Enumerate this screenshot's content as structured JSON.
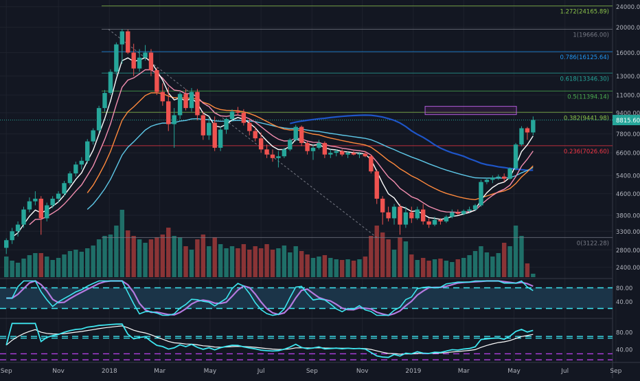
{
  "chart_data": {
    "type": "candlestick",
    "scale": "log",
    "ylim": [
      2200,
      24000
    ],
    "y_ticks": [
      24000,
      20000,
      16000,
      13000,
      11000,
      9400,
      7800,
      6600,
      5400,
      4600,
      3800,
      3300,
      2800,
      2400
    ],
    "y_tick_labels": [
      "24000.00",
      "20000.00",
      "16000.00",
      "13000.00",
      "11000.00",
      "9400.00",
      "7800.00",
      "6600.00",
      "5400.00",
      "4600.00",
      "3800.00",
      "3300.00",
      "2800.00",
      "2400.00"
    ],
    "x_labels": [
      {
        "label": "Sep",
        "t": 0.5
      },
      {
        "label": "Nov",
        "t": 9.5
      },
      {
        "label": "2018",
        "t": 18.3
      },
      {
        "label": "Mar",
        "t": 27
      },
      {
        "label": "May",
        "t": 35.7
      },
      {
        "label": "Jul",
        "t": 44.5
      },
      {
        "label": "Sep",
        "t": 53.3
      },
      {
        "label": "Nov",
        "t": 62
      },
      {
        "label": "2019",
        "t": 70.8
      },
      {
        "label": "Mar",
        "t": 79.5
      },
      {
        "label": "May",
        "t": 88.2
      },
      {
        "label": "Jul",
        "t": 97
      },
      {
        "label": "Sep",
        "t": 105.8
      }
    ],
    "last_price": "8815.60",
    "last_price_value": 8815.6,
    "fib_levels": [
      {
        "label": "1.272(24165.89)",
        "value": 24165.89,
        "color": "#8bc34a"
      },
      {
        "label": "1(19666.00)",
        "value": 19666.0,
        "color": "#787b86"
      },
      {
        "label": "0.786(16125.64)",
        "value": 16125.64,
        "color": "#2196f3"
      },
      {
        "label": "0.618(13346.30)",
        "value": 13346.3,
        "color": "#26a69a"
      },
      {
        "label": "0.5(11394.14)",
        "value": 11394.14,
        "color": "#4caf50"
      },
      {
        "label": "0.382(9441.98)",
        "value": 9441.98,
        "color": "#8bc34a"
      },
      {
        "label": "0.236(7026.60)",
        "value": 7026.6,
        "color": "#f23645"
      },
      {
        "label": "0(3122.28)",
        "value": 3122.28,
        "color": "#787b86"
      }
    ],
    "candles": [
      [
        2850,
        3100,
        2700,
        3050
      ],
      [
        3050,
        3400,
        2950,
        3300
      ],
      [
        3300,
        3600,
        3150,
        3500
      ],
      [
        3500,
        4100,
        3400,
        4000
      ],
      [
        4000,
        4450,
        3900,
        4300
      ],
      [
        4300,
        4700,
        4150,
        4400
      ],
      [
        4400,
        4500,
        3200,
        3700
      ],
      [
        3700,
        4250,
        3600,
        4150
      ],
      [
        4150,
        4500,
        4050,
        4400
      ],
      [
        4400,
        4700,
        4250,
        4600
      ],
      [
        4600,
        5150,
        4500,
        5050
      ],
      [
        5050,
        5600,
        4950,
        5500
      ],
      [
        5500,
        6100,
        5350,
        5950
      ],
      [
        5950,
        6350,
        5700,
        6150
      ],
      [
        6150,
        7450,
        6000,
        7300
      ],
      [
        7300,
        8200,
        7100,
        8050
      ],
      [
        8050,
        10000,
        7850,
        9800
      ],
      [
        9800,
        11500,
        9500,
        11200
      ],
      [
        11200,
        13800,
        11000,
        13500
      ],
      [
        13500,
        17500,
        13100,
        17200
      ],
      [
        17200,
        19700,
        14500,
        19300
      ],
      [
        19300,
        19600,
        15800,
        16000
      ],
      [
        16000,
        17300,
        13000,
        13900
      ],
      [
        13900,
        16500,
        13500,
        15300
      ],
      [
        15300,
        17100,
        14900,
        16000
      ],
      [
        16000,
        16500,
        13000,
        13700
      ],
      [
        13700,
        14000,
        11000,
        11300
      ],
      [
        11300,
        12200,
        10000,
        10400
      ],
      [
        10400,
        11800,
        8000,
        8500
      ],
      [
        8500,
        9800,
        6900,
        9200
      ],
      [
        9200,
        11300,
        8900,
        11100
      ],
      [
        11100,
        11600,
        9600,
        9800
      ],
      [
        9800,
        11700,
        9500,
        11300
      ],
      [
        11300,
        11600,
        8800,
        9200
      ],
      [
        9200,
        9500,
        7400,
        7700
      ],
      [
        7700,
        9100,
        7400,
        8600
      ],
      [
        8600,
        9100,
        6700,
        6900
      ],
      [
        6900,
        8300,
        6700,
        8100
      ],
      [
        8100,
        9000,
        7800,
        8900
      ],
      [
        8900,
        9700,
        8700,
        9500
      ],
      [
        9500,
        9900,
        9200,
        9400
      ],
      [
        9400,
        9700,
        8400,
        8600
      ],
      [
        8600,
        8900,
        7700,
        8000
      ],
      [
        8000,
        8300,
        7300,
        7500
      ],
      [
        7500,
        7900,
        6600,
        6800
      ],
      [
        6800,
        7100,
        6300,
        6500
      ],
      [
        6500,
        6800,
        6100,
        6300
      ],
      [
        6300,
        6700,
        5800,
        6400
      ],
      [
        6400,
        6900,
        6300,
        6800
      ],
      [
        6800,
        7500,
        6700,
        7400
      ],
      [
        7400,
        8450,
        7300,
        8300
      ],
      [
        8300,
        8400,
        7000,
        7200
      ],
      [
        7200,
        7300,
        6500,
        6700
      ],
      [
        6700,
        7100,
        6200,
        6900
      ],
      [
        6900,
        7400,
        6800,
        7200
      ],
      [
        7200,
        7300,
        6300,
        6500
      ],
      [
        6500,
        6800,
        6300,
        6600
      ],
      [
        6600,
        6800,
        6400,
        6700
      ],
      [
        6700,
        6800,
        6400,
        6500
      ],
      [
        6500,
        6700,
        6300,
        6600
      ],
      [
        6600,
        6700,
        6450,
        6500
      ],
      [
        6500,
        6650,
        6300,
        6550
      ],
      [
        6550,
        6700,
        6350,
        6400
      ],
      [
        6400,
        6500,
        5500,
        5600
      ],
      [
        5600,
        5700,
        4200,
        4400
      ],
      [
        4400,
        4500,
        3500,
        3900
      ],
      [
        3900,
        4100,
        3600,
        3700
      ],
      [
        3700,
        4200,
        3500,
        4100
      ],
      [
        4100,
        4200,
        3200,
        3500
      ],
      [
        3500,
        4100,
        3400,
        3900
      ],
      [
        3900,
        4100,
        3550,
        3700
      ],
      [
        3700,
        4100,
        3650,
        4000
      ],
      [
        4000,
        4200,
        3500,
        3600
      ],
      [
        3600,
        3700,
        3400,
        3500
      ],
      [
        3500,
        3750,
        3450,
        3650
      ],
      [
        3650,
        3700,
        3500,
        3600
      ],
      [
        3600,
        3800,
        3550,
        3750
      ],
      [
        3750,
        4000,
        3700,
        3900
      ],
      [
        3900,
        4000,
        3800,
        3850
      ],
      [
        3850,
        4000,
        3800,
        3950
      ],
      [
        3950,
        4100,
        3900,
        4000
      ],
      [
        4000,
        4200,
        3950,
        4150
      ],
      [
        4150,
        5200,
        4100,
        5100
      ],
      [
        5100,
        5300,
        5000,
        5200
      ],
      [
        5200,
        5400,
        5050,
        5300
      ],
      [
        5300,
        5450,
        5200,
        5350
      ],
      [
        5350,
        5500,
        5100,
        5250
      ],
      [
        5250,
        5800,
        5200,
        5750
      ],
      [
        5750,
        7200,
        5650,
        7100
      ],
      [
        7100,
        8350,
        7000,
        8200
      ],
      [
        8200,
        8300,
        7400,
        7900
      ],
      [
        7900,
        9100,
        7700,
        8816
      ]
    ],
    "volume": [
      0.3,
      0.24,
      0.21,
      0.27,
      0.32,
      0.35,
      0.35,
      0.3,
      0.25,
      0.28,
      0.33,
      0.38,
      0.4,
      0.37,
      0.42,
      0.46,
      0.55,
      0.6,
      0.62,
      0.75,
      0.98,
      0.68,
      0.6,
      0.55,
      0.5,
      0.55,
      0.58,
      0.62,
      0.72,
      0.6,
      0.58,
      0.45,
      0.4,
      0.55,
      0.62,
      0.45,
      0.58,
      0.48,
      0.42,
      0.45,
      0.42,
      0.48,
      0.4,
      0.45,
      0.42,
      0.48,
      0.4,
      0.42,
      0.46,
      0.36,
      0.45,
      0.38,
      0.33,
      0.28,
      0.3,
      0.32,
      0.28,
      0.26,
      0.25,
      0.26,
      0.24,
      0.26,
      0.3,
      0.6,
      0.75,
      0.65,
      0.55,
      0.4,
      0.58,
      0.52,
      0.33,
      0.25,
      0.28,
      0.24,
      0.26,
      0.27,
      0.24,
      0.22,
      0.26,
      0.28,
      0.32,
      0.38,
      0.45,
      0.36,
      0.3,
      0.35,
      0.5,
      0.45,
      0.75,
      0.6,
      0.2,
      0.05
    ],
    "rsi_panel": {
      "ticks": [
        80,
        40
      ],
      "tick_labels": [
        "80.00",
        "40.00"
      ],
      "bands": [
        80,
        20
      ]
    },
    "osc_panel": {
      "ticks": [
        80,
        40
      ],
      "tick_labels": [
        "80.00",
        "40.00"
      ]
    },
    "series_colors": {
      "ema_fast": "#ffffff",
      "ema_mid": "#f48fb1",
      "ema_orange": "#ff8a3d",
      "ema_blue": "#5ec8e8",
      "ema_dark": "#1e55c8",
      "up": "#26a69a",
      "down": "#ef5350",
      "stoch_k": "#3ee6f0",
      "stoch_d": "#b57ae0"
    }
  }
}
